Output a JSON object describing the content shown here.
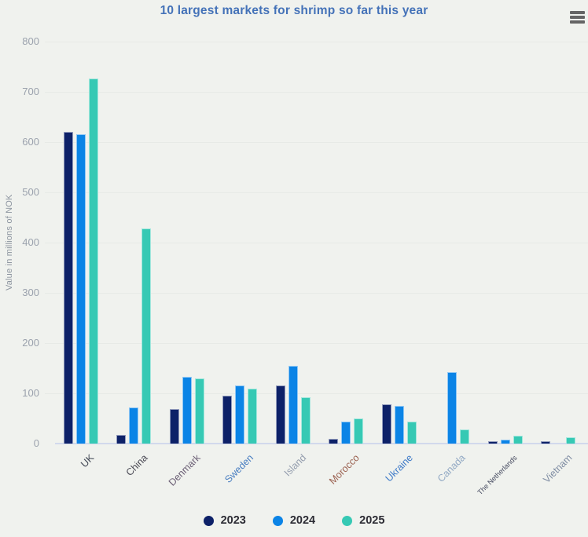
{
  "title": {
    "text": "10 largest markets for shrimp so far this year",
    "color": "#4472b8"
  },
  "export_menu": {
    "icon": "hamburger-icon"
  },
  "yaxis": {
    "title": "Value in millions of NOK",
    "tick_labels": [
      "0",
      "100",
      "200",
      "300",
      "400",
      "500",
      "600",
      "700",
      "800"
    ],
    "min": 0,
    "max": 800,
    "tick_interval": 100
  },
  "chart_data": {
    "type": "bar",
    "title": "10 largest markets for shrimp so far this year",
    "xlabel": "",
    "ylabel": "Value in millions of NOK",
    "ylim": [
      0,
      800
    ],
    "grid": true,
    "legend_position": "bottom",
    "categories": [
      "UK",
      "China",
      "Denmark",
      "Sweden",
      "Island",
      "Morocco",
      "Ukraine",
      "Canada",
      "The Netherlands",
      "Vietnam"
    ],
    "category_label_colors": [
      "#3d4451",
      "#4a4a55",
      "#6b5f75",
      "#4a7fc1",
      "#949eae",
      "#9a6150",
      "#3d7ac8",
      "#92a9c4",
      "#454a60",
      "#7f8da3"
    ],
    "series": [
      {
        "name": "2023",
        "color": "#0d2168",
        "values": [
          620,
          17,
          69,
          95,
          115,
          9,
          78,
          null,
          5,
          5
        ]
      },
      {
        "name": "2024",
        "color": "#0b84e6",
        "values": [
          616,
          72,
          133,
          115,
          154,
          43,
          75,
          142,
          8,
          null
        ]
      },
      {
        "name": "2025",
        "color": "#36c9b4",
        "values": [
          727,
          428,
          129,
          110,
          92,
          50,
          43,
          28,
          15,
          12
        ]
      }
    ]
  },
  "legend": {
    "items": [
      "2023",
      "2024",
      "2025"
    ]
  },
  "colors": {
    "background": "#f0f2ee",
    "gridline": "#e7eae6",
    "baseline": "#d2d9ec",
    "ytick_text": "#9ba2ad",
    "yaxis_title_text": "#8d95a0",
    "title_text": "#4472b8",
    "legend_text": "#2c2c34",
    "menu_icon": "#656565"
  }
}
